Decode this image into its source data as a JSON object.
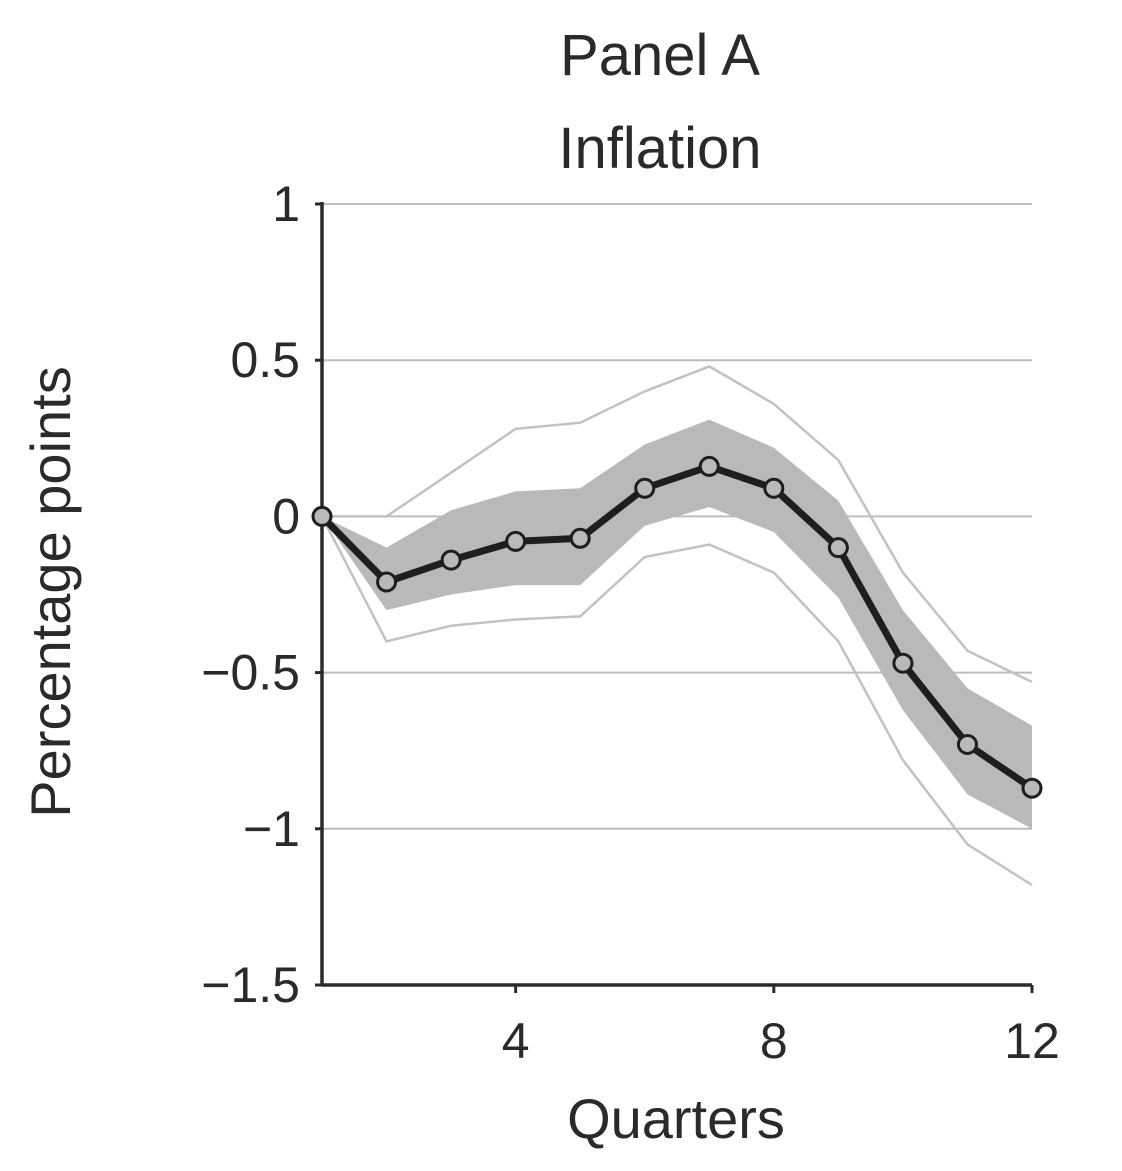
{
  "chart_data": {
    "type": "line",
    "title": "Panel A",
    "subtitle": "Inflation",
    "xlabel": "Quarters",
    "ylabel": "Percentage points",
    "xlim": [
      1,
      12
    ],
    "ylim": [
      -1.5,
      1
    ],
    "x_ticks": [
      {
        "value": 4,
        "label": "4"
      },
      {
        "value": 8,
        "label": "8"
      },
      {
        "value": 12,
        "label": "12"
      }
    ],
    "y_ticks": [
      {
        "value": 1,
        "label": "1"
      },
      {
        "value": 0.5,
        "label": "0.5"
      },
      {
        "value": 0,
        "label": "0"
      },
      {
        "value": -0.5,
        "label": "−0.5"
      },
      {
        "value": -1,
        "label": "−1"
      },
      {
        "value": -1.5,
        "label": "−1.5"
      }
    ],
    "grid": true,
    "x": [
      1,
      2,
      3,
      4,
      5,
      6,
      7,
      8,
      9,
      10,
      11,
      12
    ],
    "series": [
      {
        "values": [
          0,
          -0.21,
          -0.14,
          -0.08,
          -0.07,
          0.09,
          0.16,
          0.09,
          -0.1,
          -0.47,
          -0.73,
          -0.87
        ],
        "marker": "circle"
      }
    ],
    "band_inner": {
      "upper": [
        0,
        -0.1,
        0.02,
        0.08,
        0.09,
        0.23,
        0.31,
        0.22,
        0.05,
        -0.3,
        -0.55,
        -0.67
      ],
      "lower": [
        0,
        -0.3,
        -0.25,
        -0.22,
        -0.22,
        -0.03,
        0.03,
        -0.05,
        -0.26,
        -0.62,
        -0.89,
        -1.0
      ]
    },
    "band_outer": {
      "upper": [
        0,
        0.0,
        0.14,
        0.28,
        0.3,
        0.4,
        0.48,
        0.36,
        0.18,
        -0.18,
        -0.43,
        -0.53
      ],
      "lower": [
        0,
        -0.4,
        -0.35,
        -0.33,
        -0.32,
        -0.13,
        -0.09,
        -0.18,
        -0.4,
        -0.78,
        -1.05,
        -1.18
      ]
    },
    "colors": {
      "line": "#1e1e1e",
      "band_inner": "#b9b9b9",
      "band_outer": "#c2c2c2",
      "grid": "#bdbdbd",
      "axis": "#2b2b2b"
    }
  }
}
